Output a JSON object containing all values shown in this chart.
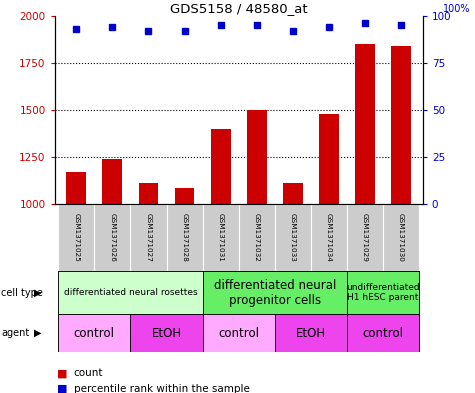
{
  "title": "GDS5158 / 48580_at",
  "samples": [
    "GSM1371025",
    "GSM1371026",
    "GSM1371027",
    "GSM1371028",
    "GSM1371031",
    "GSM1371032",
    "GSM1371033",
    "GSM1371034",
    "GSM1371029",
    "GSM1371030"
  ],
  "counts": [
    1170,
    1240,
    1115,
    1085,
    1400,
    1500,
    1115,
    1480,
    1850,
    1840
  ],
  "percentiles": [
    93,
    94,
    92,
    92,
    95,
    95,
    92,
    94,
    96,
    95
  ],
  "ylim_left": [
    1000,
    2000
  ],
  "ylim_right": [
    0,
    100
  ],
  "yticks_left": [
    1000,
    1250,
    1500,
    1750,
    2000
  ],
  "yticks_right": [
    0,
    25,
    50,
    75,
    100
  ],
  "bar_color": "#cc0000",
  "dot_color": "#0000cc",
  "bar_width": 0.55,
  "label_color_left": "#cc0000",
  "label_color_right": "#0000cc",
  "background_plot": "#ffffff",
  "sample_bg": "#cccccc",
  "ct_groups": [
    {
      "label": "differentiated neural rosettes",
      "xstart": -0.5,
      "xend": 3.5,
      "color": "#ccffcc",
      "fontsize": 6.5,
      "multiline": false
    },
    {
      "label": "differentiated neural\nprogenitor cells",
      "xstart": 3.5,
      "xend": 7.5,
      "color": "#66ee66",
      "fontsize": 8.5,
      "multiline": true
    },
    {
      "label": "undifferentiated\nH1 hESC parent",
      "xstart": 7.5,
      "xend": 9.5,
      "color": "#66ee66",
      "fontsize": 6.5,
      "multiline": true
    }
  ],
  "agent_groups": [
    {
      "label": "control",
      "xstart": -0.5,
      "xend": 1.5,
      "color": "#ffaaff"
    },
    {
      "label": "EtOH",
      "xstart": 1.5,
      "xend": 3.5,
      "color": "#ee44ee"
    },
    {
      "label": "control",
      "xstart": 3.5,
      "xend": 5.5,
      "color": "#ffaaff"
    },
    {
      "label": "EtOH",
      "xstart": 5.5,
      "xend": 7.5,
      "color": "#ee44ee"
    },
    {
      "label": "control",
      "xstart": 7.5,
      "xend": 9.5,
      "color": "#ee44ee"
    }
  ]
}
